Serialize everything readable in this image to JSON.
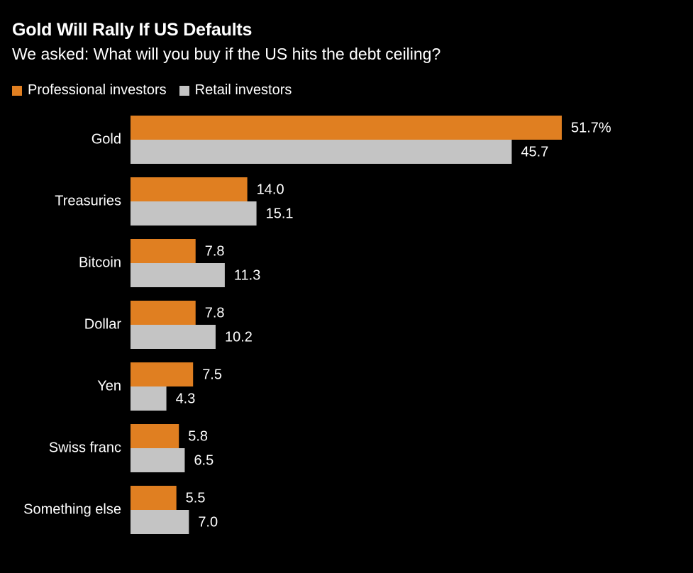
{
  "title": "Gold Will Rally If US Defaults",
  "subtitle": "We asked: What will you buy if the US hits the debt ceiling?",
  "colors": {
    "background": "#000000",
    "professional": "#e07f21",
    "retail": "#c4c4c4",
    "text": "#ffffff"
  },
  "chart_data": {
    "type": "bar",
    "orientation": "horizontal",
    "title": "Gold Will Rally If US Defaults",
    "subtitle": "We asked: What will you buy if the US hits the debt ceiling?",
    "categories": [
      "Gold",
      "Treasuries",
      "Bitcoin",
      "Dollar",
      "Yen",
      "Swiss franc",
      "Something else"
    ],
    "series": [
      {
        "name": "Professional investors",
        "color": "#e07f21",
        "values": [
          51.7,
          14.0,
          7.8,
          7.8,
          7.5,
          5.8,
          5.5
        ],
        "labels": [
          "51.7%",
          "14.0",
          "7.8",
          "7.8",
          "7.5",
          "5.8",
          "5.5"
        ]
      },
      {
        "name": "Retail investors",
        "color": "#c4c4c4",
        "values": [
          45.7,
          15.1,
          11.3,
          10.2,
          4.3,
          6.5,
          7.0
        ],
        "labels": [
          "45.7",
          "15.1",
          "11.3",
          "10.2",
          "4.3",
          "6.5",
          "7.0"
        ]
      }
    ],
    "xlim": [
      0,
      51.7
    ],
    "grid": false,
    "legend_position": "top-left",
    "axis_visible": false
  }
}
